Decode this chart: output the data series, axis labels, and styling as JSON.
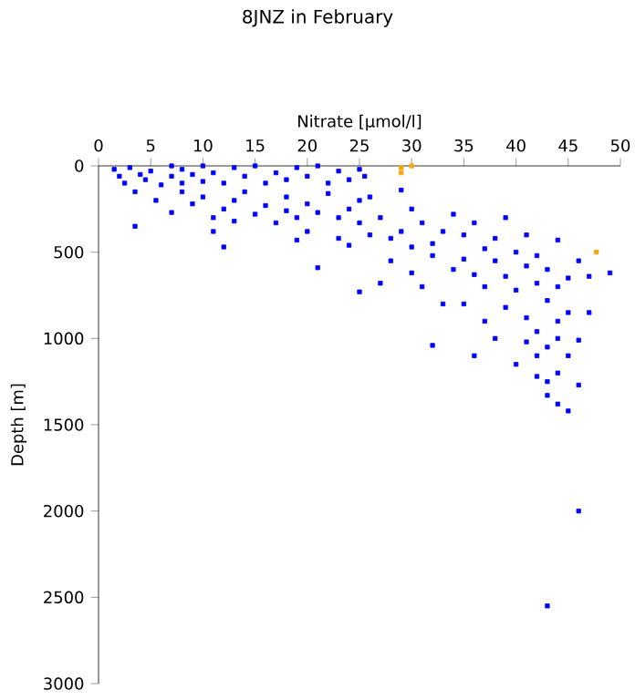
{
  "chart_data": {
    "type": "scatter",
    "title": "8JNZ in February",
    "xlabel": "Nitrate [µmol/l]",
    "ylabel": "Depth [m]",
    "xlim": [
      0,
      50
    ],
    "ylim": [
      3000,
      0
    ],
    "xticks": [
      0,
      5,
      10,
      15,
      20,
      25,
      30,
      35,
      40,
      45,
      50
    ],
    "yticks": [
      0,
      500,
      1000,
      1500,
      2000,
      2500,
      3000
    ],
    "marker": "square",
    "grid": false,
    "series": [
      {
        "color": "#0000ff",
        "x": [
          1.5,
          2,
          2.5,
          3,
          3.5,
          4,
          4.5,
          5,
          6,
          7,
          7,
          8,
          8,
          9,
          10,
          10,
          11,
          12,
          13,
          14,
          15,
          16,
          17,
          18,
          19,
          20,
          21,
          22,
          23,
          24,
          25,
          25.5,
          3.5,
          5.5,
          7,
          8,
          9,
          10,
          11,
          11,
          12,
          12,
          13,
          13,
          14,
          15,
          16,
          17,
          18,
          18,
          19,
          19,
          20,
          20,
          21,
          21,
          22,
          23,
          23,
          24,
          24,
          25,
          25,
          25,
          26,
          26,
          27,
          27,
          28,
          28,
          29,
          29,
          30,
          30,
          30,
          31,
          31,
          32,
          32,
          32,
          33,
          33,
          34,
          34,
          35,
          35,
          35,
          36,
          36,
          36,
          37,
          37,
          37,
          38,
          38,
          38,
          39,
          39,
          39,
          40,
          40,
          40,
          41,
          41,
          41,
          41,
          42,
          42,
          42,
          42,
          43,
          43,
          43,
          43,
          44,
          44,
          44,
          44,
          45,
          45,
          45,
          46,
          46,
          46,
          47,
          47,
          49,
          44,
          45,
          46,
          43,
          43,
          42,
          44
        ],
        "values": [
          20,
          60,
          100,
          10,
          150,
          50,
          80,
          30,
          110,
          0,
          60,
          100,
          20,
          50,
          0,
          90,
          40,
          100,
          10,
          60,
          0,
          100,
          40,
          80,
          10,
          60,
          0,
          100,
          30,
          80,
          20,
          60,
          350,
          200,
          270,
          150,
          220,
          180,
          300,
          380,
          470,
          250,
          200,
          320,
          150,
          280,
          230,
          330,
          180,
          260,
          300,
          430,
          220,
          380,
          590,
          270,
          160,
          300,
          420,
          250,
          460,
          200,
          330,
          730,
          400,
          180,
          680,
          300,
          420,
          550,
          140,
          380,
          250,
          470,
          620,
          700,
          330,
          450,
          520,
          1040,
          800,
          380,
          600,
          280,
          540,
          400,
          800,
          330,
          630,
          1100,
          480,
          700,
          900,
          550,
          420,
          1000,
          640,
          300,
          820,
          500,
          720,
          1150,
          580,
          880,
          1020,
          400,
          680,
          960,
          1220,
          520,
          780,
          1050,
          1330,
          600,
          900,
          1200,
          430,
          700,
          650,
          1100,
          850,
          550,
          1010,
          1270,
          640,
          850,
          620,
          1380,
          1420,
          2000,
          2550,
          1250,
          1100,
          1000
        ]
      },
      {
        "color": "#ffa500",
        "x": [
          29,
          29,
          30,
          47.7
        ],
        "values": [
          10,
          40,
          0,
          500
        ]
      }
    ]
  }
}
